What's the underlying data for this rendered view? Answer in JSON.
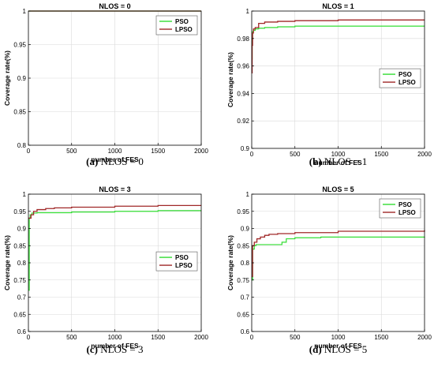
{
  "colors": {
    "pso": "#33dd33",
    "lpso": "#a02828",
    "axis": "#000000",
    "grid": "#d9d9d9"
  },
  "chart_data": [
    {
      "type": "line",
      "title": "NLOS = 0",
      "caption_label": "(a)",
      "caption_text": "NLOS = 0",
      "xlabel": "number of FES",
      "ylabel": "Coverage rate(%)",
      "xlim": [
        0,
        2000
      ],
      "ylim": [
        0.8,
        1.0
      ],
      "xticks": [
        "0",
        "500",
        "1000",
        "1500",
        "2000"
      ],
      "xtick_values": [
        0,
        500,
        1000,
        1500,
        2000
      ],
      "yticks": [
        "0.8",
        "0.85",
        "0.9",
        "0.95",
        "1"
      ],
      "ytick_values": [
        0.8,
        0.85,
        0.9,
        0.95,
        1.0
      ],
      "grid": true,
      "legend_position": "top-right",
      "series": [
        {
          "name": "PSO",
          "x": [
            0,
            2000
          ],
          "y": [
            1.0,
            1.0
          ]
        },
        {
          "name": "LPSO",
          "x": [
            0,
            2000
          ],
          "y": [
            1.0,
            1.0
          ]
        }
      ]
    },
    {
      "type": "line",
      "title": "NLOS = 1",
      "caption_label": "(b)",
      "caption_text": "NLOS = 1",
      "xlabel": "number of FES",
      "ylabel": "Coverage rate(%)",
      "xlim": [
        0,
        2000
      ],
      "ylim": [
        0.9,
        1.0
      ],
      "xticks": [
        "0",
        "500",
        "1000",
        "1500",
        "2000"
      ],
      "xtick_values": [
        0,
        500,
        1000,
        1500,
        2000
      ],
      "yticks": [
        "0.9",
        "0.92",
        "0.94",
        "0.96",
        "0.98",
        "1"
      ],
      "ytick_values": [
        0.9,
        0.92,
        0.94,
        0.96,
        0.98,
        1.0
      ],
      "grid": true,
      "legend_position": "center-right",
      "series": [
        {
          "name": "PSO",
          "x": [
            0,
            5,
            10,
            20,
            40,
            80,
            150,
            300,
            500,
            700,
            2000
          ],
          "y": [
            0.965,
            0.98,
            0.985,
            0.986,
            0.987,
            0.9875,
            0.988,
            0.9885,
            0.989,
            0.989,
            0.989
          ]
        },
        {
          "name": "LPSO",
          "x": [
            0,
            5,
            10,
            20,
            40,
            80,
            150,
            300,
            500,
            1000,
            2000
          ],
          "y": [
            0.955,
            0.975,
            0.984,
            0.987,
            0.988,
            0.991,
            0.992,
            0.9925,
            0.993,
            0.9935,
            0.9935
          ]
        }
      ]
    },
    {
      "type": "line",
      "title": "NLOS = 3",
      "caption_label": "(c)",
      "caption_text": "NLOS = 3",
      "xlabel": "number of FES",
      "ylabel": "Coverage rate(%)",
      "xlim": [
        0,
        2000
      ],
      "ylim": [
        0.6,
        1.0
      ],
      "xticks": [
        "0",
        "500",
        "1000",
        "1500",
        "2000"
      ],
      "xtick_values": [
        0,
        500,
        1000,
        1500,
        2000
      ],
      "yticks": [
        "0.6",
        "0.65",
        "0.7",
        "0.75",
        "0.8",
        "0.85",
        "0.9",
        "0.95",
        "1"
      ],
      "ytick_values": [
        0.6,
        0.65,
        0.7,
        0.75,
        0.8,
        0.85,
        0.9,
        0.95,
        1.0
      ],
      "grid": true,
      "legend_position": "center-right",
      "series": [
        {
          "name": "PSO",
          "x": [
            0,
            10,
            20,
            40,
            100,
            300,
            500,
            1000,
            1500,
            2000
          ],
          "y": [
            0.72,
            0.93,
            0.94,
            0.945,
            0.946,
            0.946,
            0.948,
            0.95,
            0.952,
            0.952
          ]
        },
        {
          "name": "LPSO",
          "x": [
            0,
            10,
            30,
            60,
            100,
            200,
            300,
            500,
            1000,
            1500,
            2000
          ],
          "y": [
            0.93,
            0.93,
            0.94,
            0.95,
            0.955,
            0.958,
            0.96,
            0.962,
            0.965,
            0.967,
            0.967
          ]
        }
      ]
    },
    {
      "type": "line",
      "title": "NLOS = 5",
      "caption_label": "(d)",
      "caption_text": "NLOS = 5",
      "xlabel": "number of FES",
      "ylabel": "Coverage rate(%)",
      "xlim": [
        0,
        2000
      ],
      "ylim": [
        0.6,
        1.0
      ],
      "xticks": [
        "0",
        "500",
        "1000",
        "1500",
        "2000"
      ],
      "xtick_values": [
        0,
        500,
        1000,
        1500,
        2000
      ],
      "yticks": [
        "0.6",
        "0.65",
        "0.7",
        "0.75",
        "0.8",
        "0.85",
        "0.9",
        "0.95",
        "1"
      ],
      "ytick_values": [
        0.6,
        0.65,
        0.7,
        0.75,
        0.8,
        0.85,
        0.9,
        0.95,
        1.0
      ],
      "grid": true,
      "legend_position": "top-right",
      "series": [
        {
          "name": "PSO",
          "x": [
            0,
            10,
            30,
            50,
            100,
            200,
            300,
            350,
            400,
            500,
            800,
            2000
          ],
          "y": [
            0.75,
            0.84,
            0.85,
            0.853,
            0.853,
            0.853,
            0.853,
            0.86,
            0.87,
            0.873,
            0.875,
            0.876
          ]
        },
        {
          "name": "LPSO",
          "x": [
            0,
            10,
            30,
            60,
            100,
            150,
            200,
            300,
            500,
            1000,
            2000
          ],
          "y": [
            0.76,
            0.85,
            0.86,
            0.87,
            0.875,
            0.88,
            0.883,
            0.885,
            0.888,
            0.892,
            0.895
          ]
        }
      ]
    }
  ]
}
